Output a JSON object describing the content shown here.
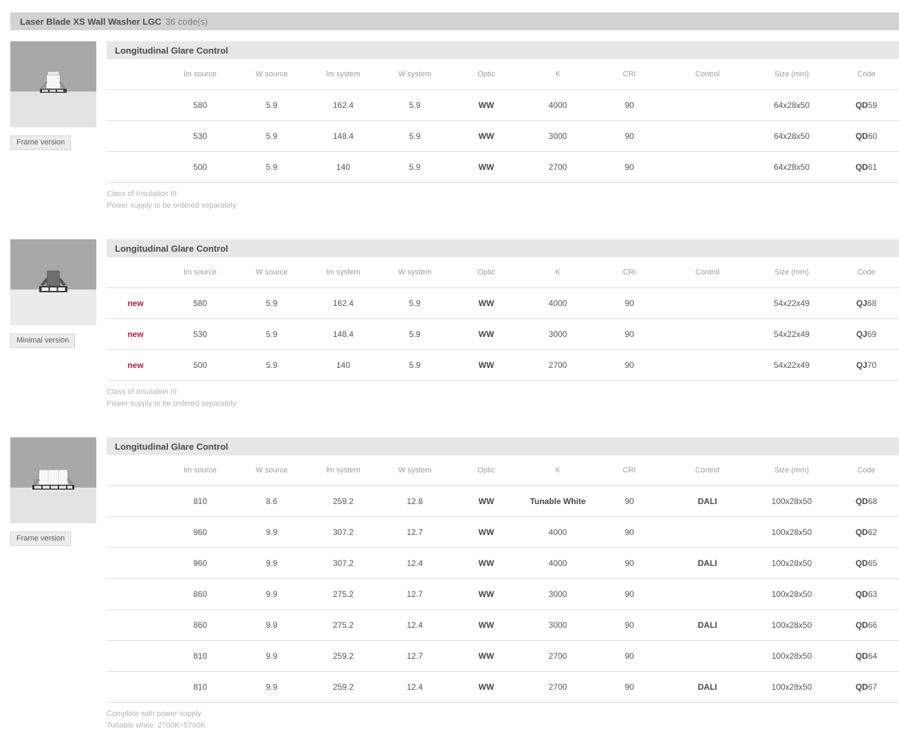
{
  "page": {
    "title": "Laser Blade XS Wall Washer LGC",
    "codes_count": "36 code(s)"
  },
  "colors": {
    "new_badge_red": "#c41444",
    "titlebar_bg": "#d2d2d2",
    "section_header_bg": "#e7e7e7"
  },
  "table": {
    "new_label": "new",
    "columns": [
      "lm source",
      "W source",
      "lm system",
      "W system",
      "Optic",
      "K",
      "CRI",
      "Control",
      "Size (mm)",
      "Code"
    ]
  },
  "sections": [
    {
      "header": "Longitudinal Glare Control",
      "version_label": "Frame version",
      "thumbnail_icon": "recessed-frame-luminaire-icon",
      "thumb_variant": "frame-small",
      "rows": [
        {
          "is_new": false,
          "lm_source": "580",
          "w_source": "5.9",
          "lm_system": "162.4",
          "w_system": "5.9",
          "optic": "WW",
          "k": "4000",
          "cri": "90",
          "control": "",
          "size": "64x28x50",
          "code": "QD59"
        },
        {
          "is_new": false,
          "lm_source": "530",
          "w_source": "5.9",
          "lm_system": "148.4",
          "w_system": "5.9",
          "optic": "WW",
          "k": "3000",
          "cri": "90",
          "control": "",
          "size": "64x28x50",
          "code": "QD60"
        },
        {
          "is_new": false,
          "lm_source": "500",
          "w_source": "5.9",
          "lm_system": "140",
          "w_system": "5.9",
          "optic": "WW",
          "k": "2700",
          "cri": "90",
          "control": "",
          "size": "64x28x50",
          "code": "QD61"
        }
      ],
      "notes": [
        "Class of Insulation III",
        "Power supply to be ordered separately"
      ]
    },
    {
      "header": "Longitudinal Glare Control",
      "version_label": "Minimal version",
      "thumbnail_icon": "recessed-minimal-luminaire-icon",
      "thumb_variant": "minimal-small",
      "rows": [
        {
          "is_new": true,
          "lm_source": "580",
          "w_source": "5.9",
          "lm_system": "162.4",
          "w_system": "5.9",
          "optic": "WW",
          "k": "4000",
          "cri": "90",
          "control": "",
          "size": "54x22x49",
          "code": "QJ68"
        },
        {
          "is_new": true,
          "lm_source": "530",
          "w_source": "5.9",
          "lm_system": "148.4",
          "w_system": "5.9",
          "optic": "WW",
          "k": "3000",
          "cri": "90",
          "control": "",
          "size": "54x22x49",
          "code": "QJ69"
        },
        {
          "is_new": true,
          "lm_source": "500",
          "w_source": "5.9",
          "lm_system": "140",
          "w_system": "5.9",
          "optic": "WW",
          "k": "2700",
          "cri": "90",
          "control": "",
          "size": "54x22x49",
          "code": "QJ70"
        }
      ],
      "notes": [
        "Class of Insulation III",
        "Power supply to be ordered separately"
      ]
    },
    {
      "header": "Longitudinal Glare Control",
      "version_label": "Frame version",
      "thumbnail_icon": "recessed-frame-wide-luminaire-icon",
      "thumb_variant": "frame-wide",
      "rows": [
        {
          "is_new": false,
          "lm_source": "810",
          "w_source": "8.6",
          "lm_system": "259.2",
          "w_system": "12.8",
          "optic": "WW",
          "k": "Tunable White",
          "cri": "90",
          "control": "DALI",
          "size": "100x28x50",
          "code": "QD68"
        },
        {
          "is_new": false,
          "lm_source": "960",
          "w_source": "9.9",
          "lm_system": "307.2",
          "w_system": "12.7",
          "optic": "WW",
          "k": "4000",
          "cri": "90",
          "control": "",
          "size": "100x28x50",
          "code": "QD62"
        },
        {
          "is_new": false,
          "lm_source": "960",
          "w_source": "9.9",
          "lm_system": "307.2",
          "w_system": "12.4",
          "optic": "WW",
          "k": "4000",
          "cri": "90",
          "control": "DALI",
          "size": "100x28x50",
          "code": "QD65"
        },
        {
          "is_new": false,
          "lm_source": "860",
          "w_source": "9.9",
          "lm_system": "275.2",
          "w_system": "12.7",
          "optic": "WW",
          "k": "3000",
          "cri": "90",
          "control": "",
          "size": "100x28x50",
          "code": "QD63"
        },
        {
          "is_new": false,
          "lm_source": "860",
          "w_source": "9.9",
          "lm_system": "275.2",
          "w_system": "12.4",
          "optic": "WW",
          "k": "3000",
          "cri": "90",
          "control": "DALI",
          "size": "100x28x50",
          "code": "QD66"
        },
        {
          "is_new": false,
          "lm_source": "810",
          "w_source": "9.9",
          "lm_system": "259.2",
          "w_system": "12.7",
          "optic": "WW",
          "k": "2700",
          "cri": "90",
          "control": "",
          "size": "100x28x50",
          "code": "QD64"
        },
        {
          "is_new": false,
          "lm_source": "810",
          "w_source": "9.9",
          "lm_system": "259.2",
          "w_system": "12.4",
          "optic": "WW",
          "k": "2700",
          "cri": "90",
          "control": "DALI",
          "size": "100x28x50",
          "code": "QD67"
        }
      ],
      "notes": [
        "Complete with power supply",
        "Tunable white: 2700K÷5700K"
      ]
    }
  ]
}
